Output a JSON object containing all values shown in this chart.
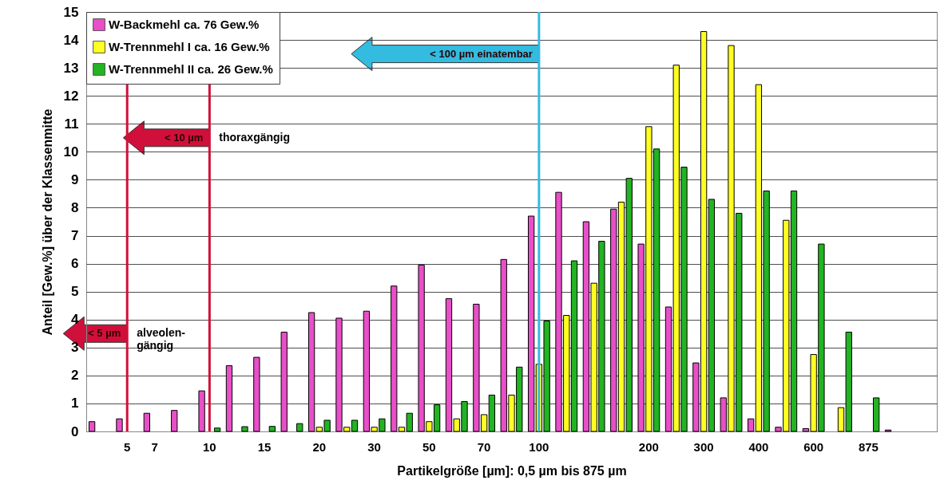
{
  "chart_data": {
    "type": "bar",
    "xlabel": "Partikelgröße [µm]: 0,5 µm bis 875 µm",
    "ylabel": "Anteil [Gew.%] über der Klassenmitte",
    "categories": [
      null,
      "5",
      "7",
      null,
      "10",
      null,
      "15",
      null,
      "20",
      null,
      "30",
      null,
      "50",
      null,
      "70",
      null,
      "100",
      null,
      null,
      null,
      "200",
      null,
      "300",
      null,
      "400",
      null,
      "600",
      null,
      "875",
      null,
      null
    ],
    "series": [
      {
        "name": "W-Backmehl ca. 76 Gew.%",
        "color": "#e84fc8",
        "values": [
          0.35,
          0.45,
          0.65,
          0.75,
          1.45,
          2.35,
          2.65,
          3.55,
          4.25,
          4.05,
          4.3,
          5.2,
          5.95,
          4.75,
          4.55,
          6.15,
          7.7,
          8.55,
          7.5,
          7.95,
          6.7,
          4.45,
          2.45,
          1.2,
          0.45,
          0.15,
          0.1,
          null,
          null,
          0.05,
          null
        ]
      },
      {
        "name": "W-Trennmehl I ca. 16 Gew.%",
        "color": "#ffff22",
        "values": [
          null,
          null,
          null,
          null,
          null,
          null,
          null,
          null,
          0.15,
          0.15,
          0.15,
          0.15,
          0.35,
          0.45,
          0.6,
          1.3,
          2.4,
          4.15,
          5.3,
          8.2,
          10.9,
          13.1,
          14.3,
          13.8,
          12.4,
          7.55,
          2.75,
          0.85,
          null,
          null,
          null
        ]
      },
      {
        "name": "W-Trennmehl II ca. 26 Gew.%",
        "color": "#22b422",
        "values": [
          null,
          null,
          null,
          null,
          0.12,
          0.17,
          0.18,
          0.28,
          0.4,
          0.4,
          0.45,
          0.65,
          0.95,
          1.07,
          1.3,
          2.3,
          3.95,
          6.1,
          6.8,
          9.05,
          10.1,
          9.45,
          8.3,
          7.8,
          8.6,
          8.6,
          6.7,
          3.55,
          1.2,
          null,
          null
        ]
      }
    ],
    "ylim": [
      0,
      15
    ],
    "yticks": [
      0,
      1,
      2,
      3,
      4,
      5,
      6,
      7,
      8,
      9,
      10,
      11,
      12,
      13,
      14,
      15
    ],
    "grid": "y",
    "legend": "top left",
    "ref_lines": [
      {
        "axis": "x",
        "value": "5",
        "label": "< 5 µm",
        "color": "#d0103a"
      },
      {
        "axis": "x",
        "value": "10",
        "label": "< 10 µm",
        "color": "#d0103a"
      },
      {
        "axis": "x",
        "value": "100",
        "label": "< 100 µm einatembar",
        "color": "#33bbe0"
      }
    ],
    "annotations": [
      {
        "text": "alveolen-\ngängig",
        "x": "5",
        "y": 3.5
      },
      {
        "text": "thoraxgängig",
        "x": "10",
        "y": 10.5
      }
    ]
  }
}
